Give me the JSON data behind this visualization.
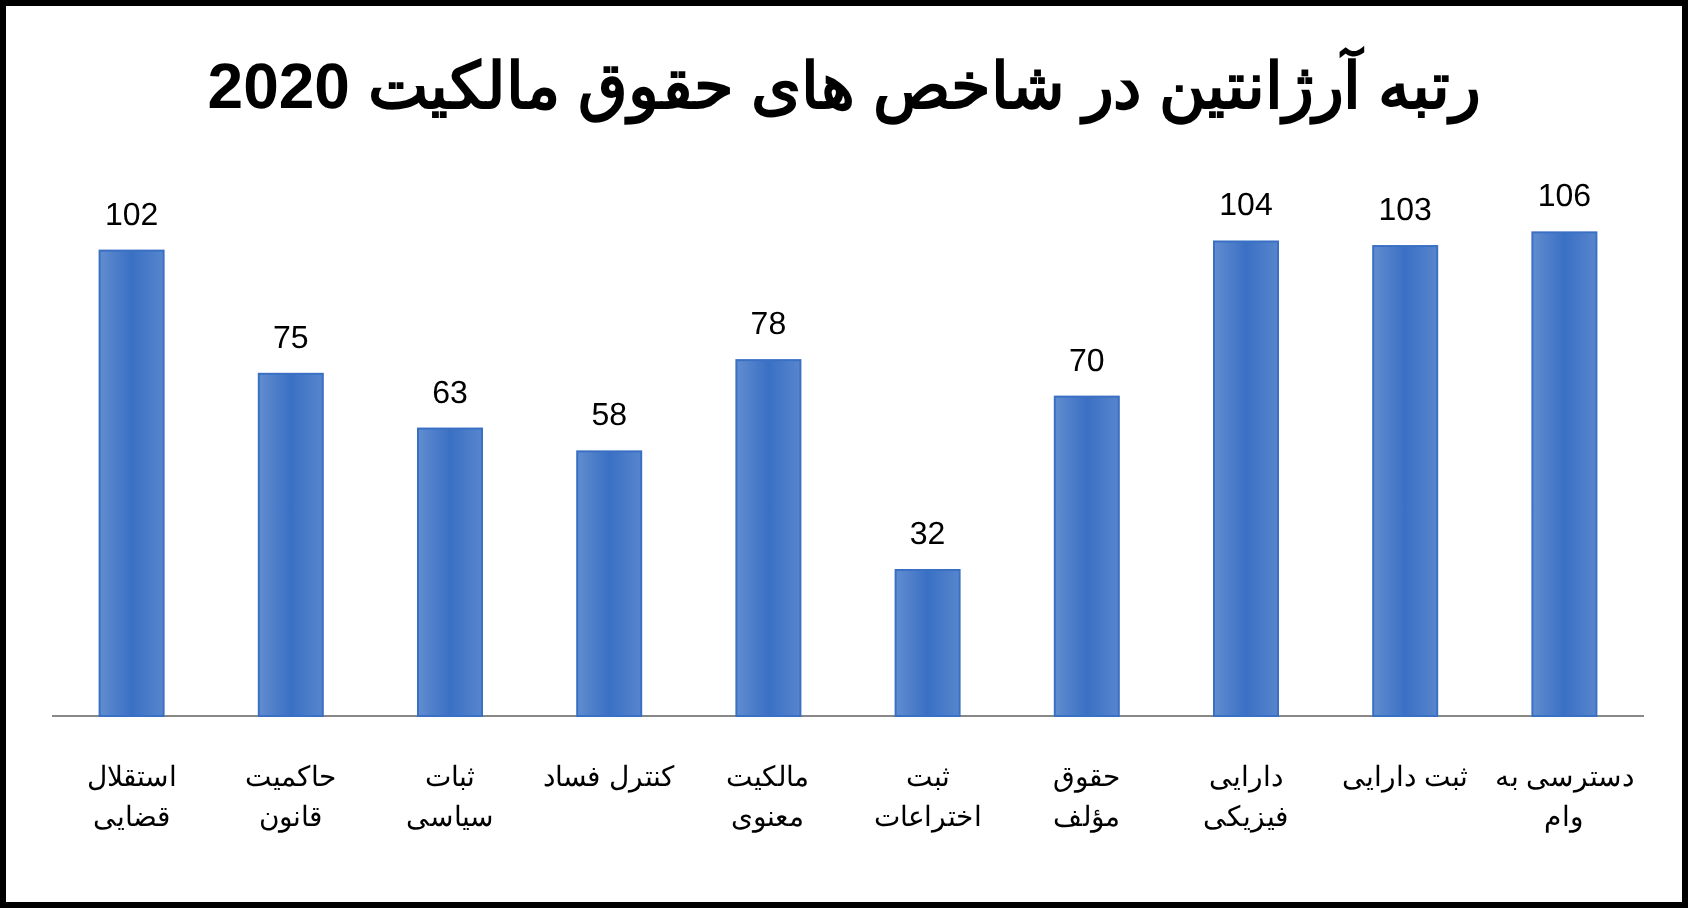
{
  "chart_data": {
    "type": "bar",
    "title": "رتبه آرژانتین در شاخص های حقوق مالکیت 2020",
    "categories": [
      "استقلال قضایی",
      "حاکمیت قانون",
      "ثبات سیاسی",
      "کنترل فساد",
      "مالکیت معنوی",
      "ثبت اختراعات",
      "حقوق مؤلف",
      "دارایی فیزیکی",
      "ثبت دارایی",
      "دسترسی به وام"
    ],
    "values": [
      102,
      75,
      63,
      58,
      78,
      32,
      70,
      104,
      103,
      106
    ],
    "color": "#3a70c4",
    "data_labels": true
  }
}
